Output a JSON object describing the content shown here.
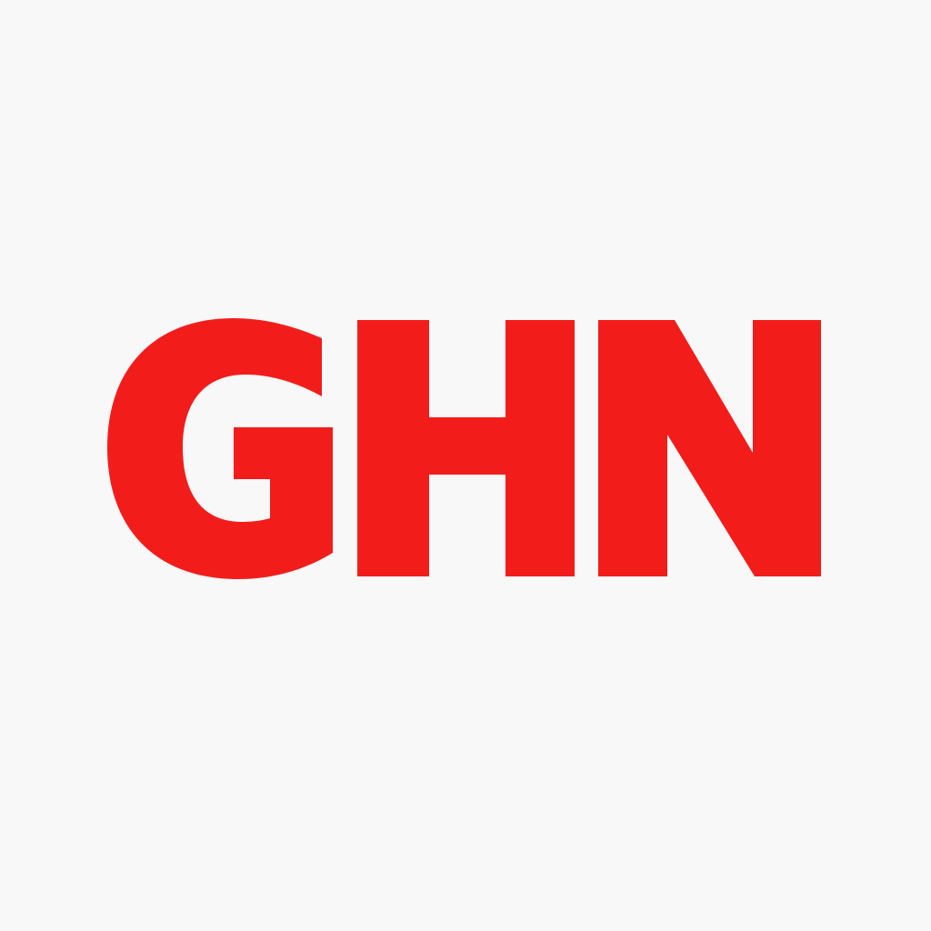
{
  "logo": {
    "text": "GHN",
    "color": "#f21d1b",
    "background": "#f8f8f8"
  }
}
